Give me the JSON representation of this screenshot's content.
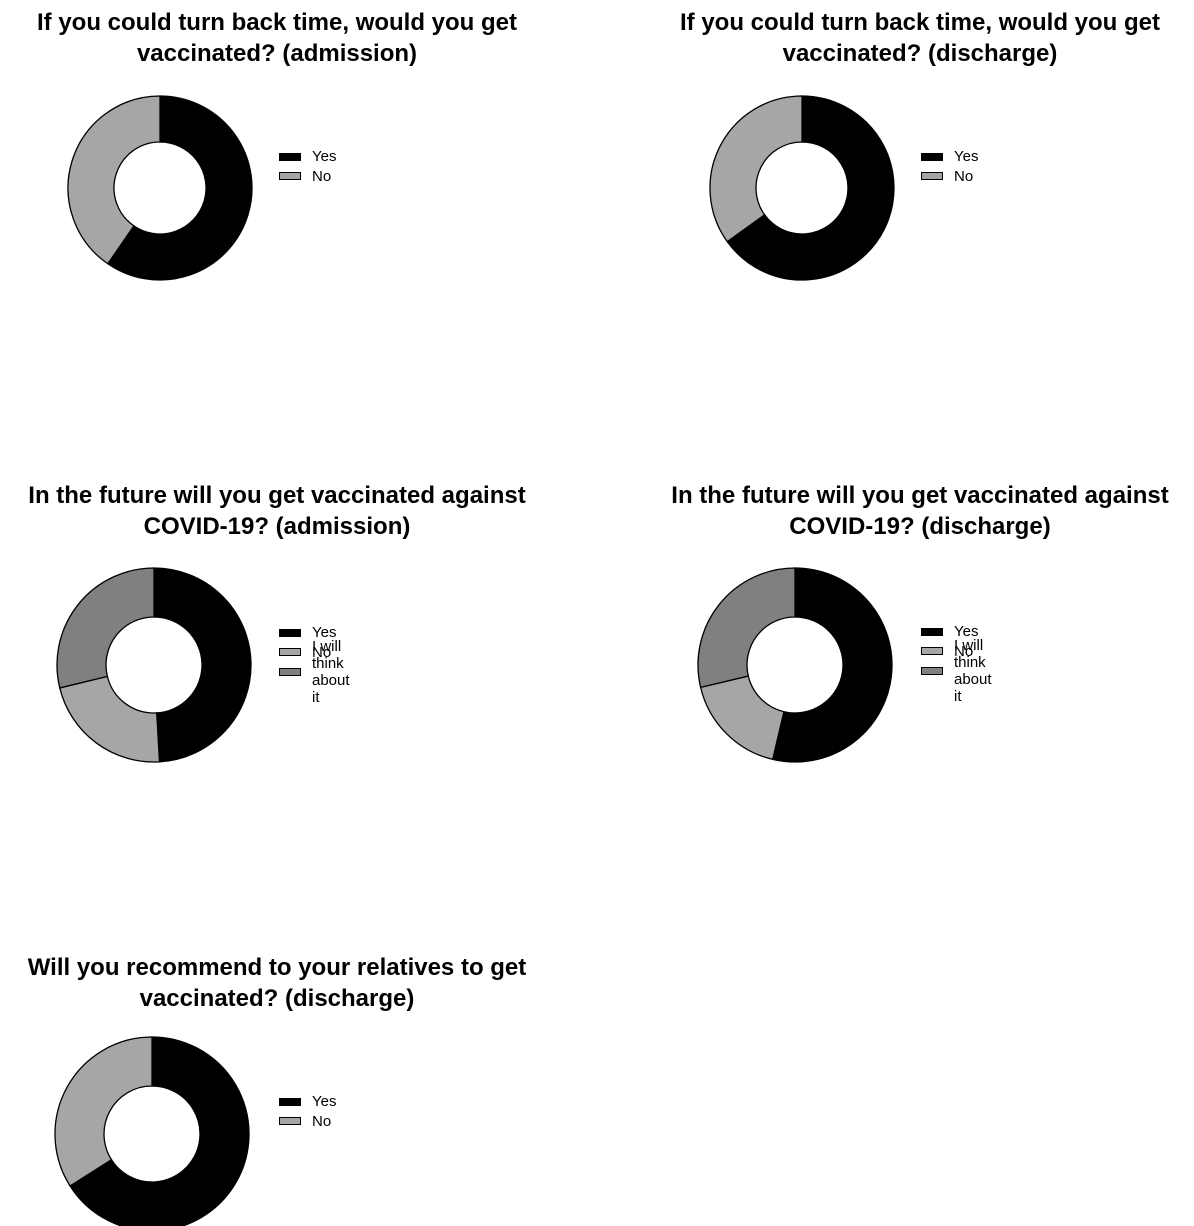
{
  "colors": {
    "yes": "#000000",
    "no": "#a6a6a6",
    "think": "#808080"
  },
  "chart_data": [
    {
      "type": "pie",
      "title": [
        "If you could turn back time, would you get",
        "vaccinated? (admission)"
      ],
      "categories": [
        "Yes",
        "No"
      ],
      "values": [
        59.6,
        40.4
      ],
      "legend_position": "right"
    },
    {
      "type": "pie",
      "title": [
        "If you could turn back time, would you get",
        "vaccinated? (discharge)"
      ],
      "categories": [
        "Yes",
        "No"
      ],
      "values": [
        65.1,
        34.9
      ],
      "legend_position": "right"
    },
    {
      "type": "pie",
      "title": [
        "In the future will you get vaccinated against",
        "COVID-19? (admission)"
      ],
      "categories": [
        "Yes",
        "No",
        "I will think about it"
      ],
      "values": [
        49.1,
        22.1,
        28.8
      ],
      "legend_position": "right"
    },
    {
      "type": "pie",
      "title": [
        "In the future will you get vaccinated against",
        "COVID-19? (discharge)"
      ],
      "categories": [
        "Yes",
        "No",
        "I will think about it"
      ],
      "values": [
        53.7,
        17.6,
        28.7
      ],
      "legend_position": "right"
    },
    {
      "type": "pie",
      "title": [
        "Will you recommend to your relatives to get",
        "vaccinated? (discharge)"
      ],
      "categories": [
        "Yes",
        "No"
      ],
      "values": [
        66.0,
        34.0
      ],
      "legend_position": "right"
    }
  ]
}
